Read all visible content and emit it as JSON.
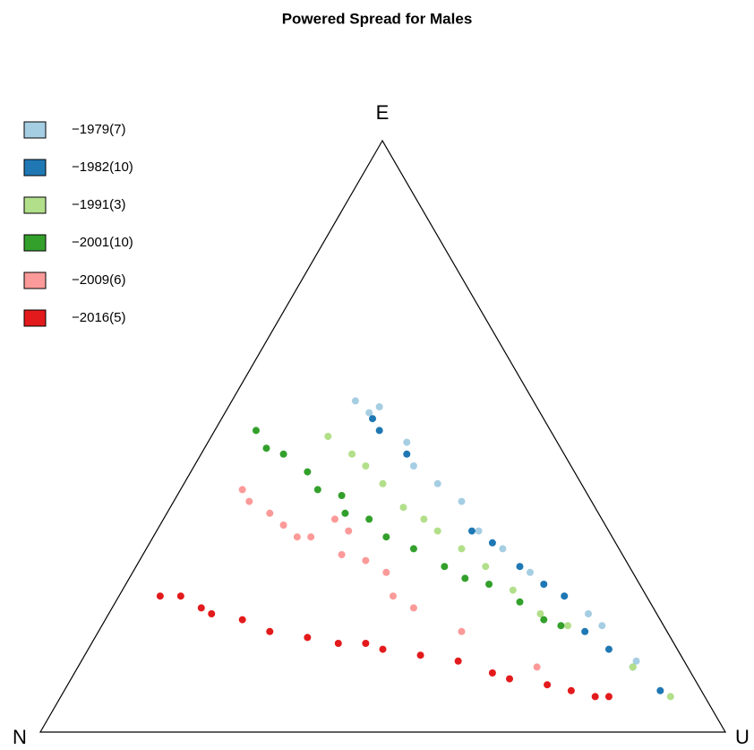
{
  "chart_data": {
    "type": "ternary",
    "title": "Powered Spread for Males",
    "vertices": {
      "top": "E",
      "left": "N",
      "right": "U"
    },
    "legend": "top-left",
    "series": [
      {
        "name": "−1979(7)",
        "color": "#a6cee3",
        "E": [
          0.56,
          0.54,
          0.55,
          0.49,
          0.45,
          0.42,
          0.39,
          0.34,
          0.31,
          0.27,
          0.23,
          0.2,
          0.18,
          0.12
        ],
        "U": [
          0.18,
          0.21,
          0.22,
          0.29,
          0.32,
          0.37,
          0.42,
          0.47,
          0.52,
          0.58,
          0.65,
          0.7,
          0.73,
          0.81
        ]
      },
      {
        "name": "−1982(10)",
        "color": "#1f78b4",
        "E": [
          0.53,
          0.51,
          0.47,
          0.34,
          0.32,
          0.28,
          0.25,
          0.23,
          0.17,
          0.14,
          0.11,
          0.07
        ],
        "U": [
          0.22,
          0.24,
          0.3,
          0.46,
          0.5,
          0.56,
          0.61,
          0.65,
          0.71,
          0.76,
          0.81,
          0.87
        ]
      },
      {
        "name": "−1991(3)",
        "color": "#b2df8a",
        "E": [
          0.5,
          0.47,
          0.45,
          0.42,
          0.38,
          0.36,
          0.34,
          0.31,
          0.28,
          0.24,
          0.2,
          0.18,
          0.11,
          0.06
        ],
        "U": [
          0.17,
          0.22,
          0.25,
          0.29,
          0.34,
          0.38,
          0.41,
          0.46,
          0.51,
          0.57,
          0.63,
          0.68,
          0.81,
          0.89
        ]
      },
      {
        "name": "−2001(10)",
        "color": "#33a02c",
        "E": [
          0.51,
          0.48,
          0.47,
          0.44,
          0.41,
          0.4,
          0.37,
          0.36,
          0.33,
          0.31,
          0.28,
          0.26,
          0.25,
          0.22,
          0.19,
          0.18
        ],
        "U": [
          0.06,
          0.09,
          0.12,
          0.17,
          0.2,
          0.24,
          0.26,
          0.3,
          0.34,
          0.39,
          0.45,
          0.49,
          0.53,
          0.59,
          0.64,
          0.67
        ]
      },
      {
        "name": "−2009(6)",
        "color": "#fb9a99",
        "E": [
          0.41,
          0.39,
          0.37,
          0.35,
          0.33,
          0.33,
          0.36,
          0.34,
          0.3,
          0.29,
          0.27,
          0.23,
          0.21,
          0.17,
          0.11
        ],
        "U": [
          0.09,
          0.11,
          0.15,
          0.18,
          0.21,
          0.23,
          0.25,
          0.28,
          0.29,
          0.33,
          0.37,
          0.4,
          0.44,
          0.53,
          0.67
        ]
      },
      {
        "name": "−2016(5)",
        "color": "#e31a1c",
        "E": [
          0.23,
          0.23,
          0.21,
          0.2,
          0.19,
          0.17,
          0.16,
          0.15,
          0.15,
          0.14,
          0.13,
          0.12,
          0.1,
          0.09,
          0.08,
          0.07,
          0.06,
          0.06
        ],
        "U": [
          0.06,
          0.09,
          0.13,
          0.15,
          0.2,
          0.25,
          0.31,
          0.36,
          0.4,
          0.43,
          0.49,
          0.55,
          0.61,
          0.64,
          0.7,
          0.74,
          0.78,
          0.8
        ]
      }
    ]
  }
}
